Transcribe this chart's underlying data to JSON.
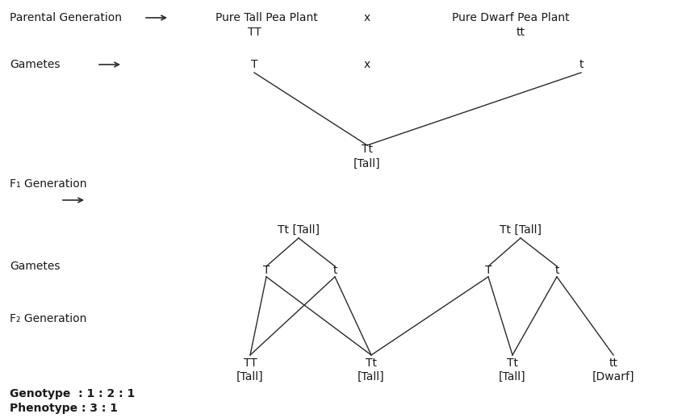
{
  "bg_color": "#ffffff",
  "text_color": "#1a1a1a",
  "line_color": "#2a2a2a",
  "figsize": [
    8.5,
    5.18
  ],
  "dpi": 100,
  "labels": {
    "parental_gen": "Parental Generation",
    "arrow1": "→",
    "pure_tall": "Pure Tall Pea Plant",
    "TT": "TT",
    "x1": "x",
    "pure_dwarf": "Pure Dwarf Pea Plant",
    "tt_label": "tt",
    "gametes1": "Gametes",
    "arrow2": "→",
    "T_gamete": "T",
    "x2": "x",
    "t_gamete": "t",
    "Tt_f1": "Tt",
    "tall_f1": "[Tall]",
    "f1_gen": "F₁ Generation",
    "arrow3": "→",
    "tt_left": "Tt [Tall]",
    "tt_right": "Tt [Tall]",
    "gametes2": "Gametes",
    "T_left": "T",
    "t_left": "t",
    "T_right": "T",
    "t_right": "t",
    "f2_gen": "F₂ Generation",
    "TT_f2": "TT",
    "tall_TT": "[Tall]",
    "Tt_f2": "Tt",
    "tall_Tt": "[Tall]",
    "Tt2_f2": "Tt",
    "tall_Tt2": "[Tall]",
    "tt_f2": "tt",
    "dwarf_tt": "[Dwarf]",
    "genotype": "Genotype  : 1 : 2 : 1",
    "phenotype": "Phenotype : 3 : 1"
  }
}
